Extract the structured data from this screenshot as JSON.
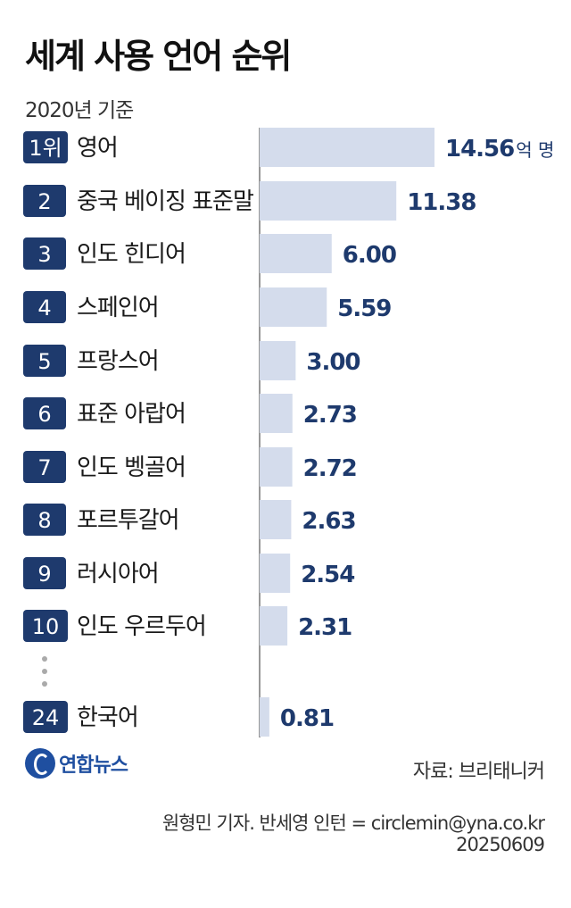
{
  "title": "세계 사용 언어 순위",
  "subtitle": "2020년 기준",
  "unit": "억 명",
  "source": "자료: 브리태니커",
  "credit": "원형민 기자. 반세영 인턴 = circlemin@yna.co.kr",
  "date": "20250609",
  "logo_text": "연합뉴스",
  "colors": {
    "rank_box": "#1e3a6d",
    "bar": "#d4dcec",
    "value_text": "#1e3a6d",
    "logo": "#1f4fa0"
  },
  "chart_data": {
    "type": "bar",
    "orientation": "horizontal",
    "title": "세계 사용 언어 순위",
    "subtitle": "2020년 기준",
    "ranks": [
      "1위",
      "2",
      "3",
      "4",
      "5",
      "6",
      "7",
      "8",
      "9",
      "10",
      "24"
    ],
    "categories": [
      "영어",
      "중국 베이징 표준말",
      "인도 힌디어",
      "스페인어",
      "프랑스어",
      "표준 아랍어",
      "인도 벵골어",
      "포르투갈어",
      "러시아어",
      "인도 우르두어",
      "한국어"
    ],
    "values": [
      14.56,
      11.38,
      6.0,
      5.59,
      3.0,
      2.73,
      2.72,
      2.63,
      2.54,
      2.31,
      0.81
    ],
    "value_labels": [
      "14.56",
      "11.38",
      "6.00",
      "5.59",
      "3.00",
      "2.73",
      "2.72",
      "2.63",
      "2.54",
      "2.31",
      "0.81"
    ],
    "xlim": [
      0,
      15
    ],
    "grid": false,
    "legend": "none"
  }
}
